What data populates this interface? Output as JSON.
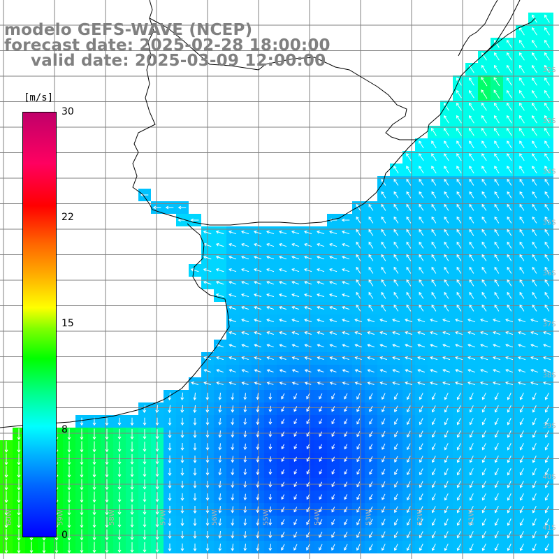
{
  "header": {
    "line1": "modelo GEFS-WAVE (NCEP)",
    "line2": "forecast date: 2025-02-28 18:00:00",
    "line3": "valid date: 2025-03-09 12:00:00"
  },
  "colorbar": {
    "unit": "[m/s]",
    "ticks": [
      "30",
      "22",
      "15",
      "8",
      "0"
    ],
    "tick_values": [
      30,
      22,
      15,
      8,
      0
    ],
    "range": [
      0,
      30
    ],
    "colors": [
      "#0000ff",
      "#00bbff",
      "#00ffff",
      "#00ff00",
      "#ffff00",
      "#ff6600",
      "#ff0000",
      "#c0006a"
    ]
  },
  "map": {
    "lat_labels": [
      "32S",
      "33S",
      "34S",
      "35S",
      "36S",
      "37S",
      "38S",
      "39S",
      "40S",
      "41S"
    ],
    "lon_labels": [
      "60W",
      "59W",
      "58W",
      "57W",
      "56W",
      "55W",
      "54W",
      "53W",
      "52W",
      "51W"
    ],
    "arrow_color": "#ffffff",
    "land_color": "#ffffff",
    "coast_color": "#000000",
    "grid_color": "#808080"
  }
}
